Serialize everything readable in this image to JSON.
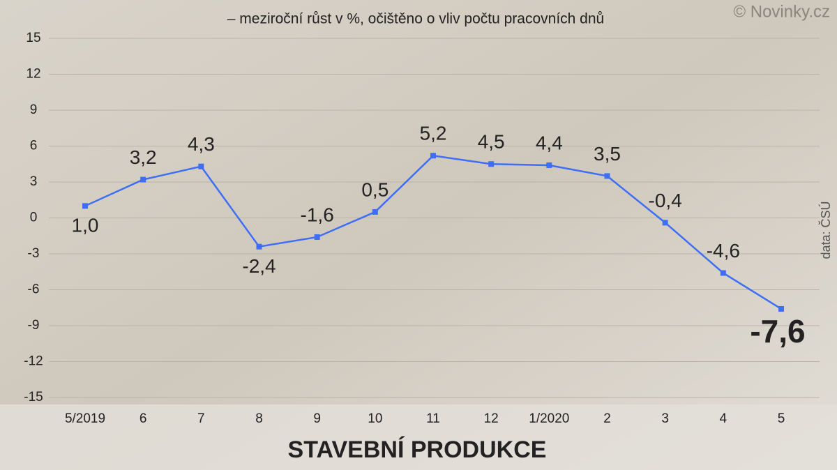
{
  "chart_data": {
    "type": "line",
    "title": "STAVEBNÍ PRODUKCE",
    "subtitle": "– meziroční růst v %, očištěno o vliv počtu pracovních dnů",
    "credit": "© Novinky.cz",
    "source": "data: ČSÚ",
    "categories": [
      "5/2019",
      "6",
      "7",
      "8",
      "9",
      "10",
      "11",
      "12",
      "1/2020",
      "2",
      "3",
      "4",
      "5"
    ],
    "series": [
      {
        "color": "#3d6ef5",
        "values": [
          1.0,
          3.2,
          4.3,
          -2.4,
          -1.6,
          0.5,
          5.2,
          4.5,
          4.4,
          3.5,
          -0.4,
          -4.6,
          -7.6
        ],
        "value_labels": [
          "1,0",
          "3,2",
          "4,3",
          "-2,4",
          "-1,6",
          "0,5",
          "5,2",
          "4,5",
          "4,4",
          "3,5",
          "-0,4",
          "-4,6",
          "-7,6"
        ]
      }
    ],
    "ylim": [
      -15,
      15
    ],
    "yticks": [
      -15,
      -12,
      -9,
      -6,
      -3,
      0,
      3,
      6,
      9,
      12,
      15
    ],
    "grid": true
  }
}
